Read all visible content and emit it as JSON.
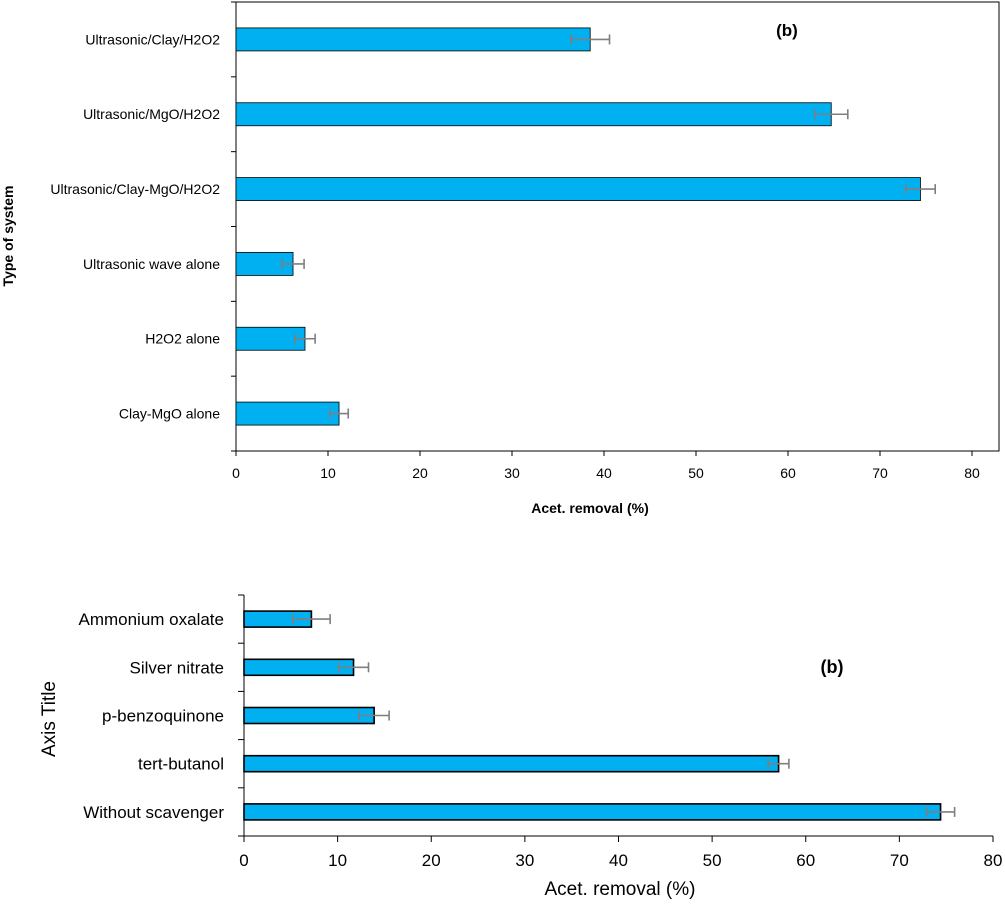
{
  "chart_data": [
    {
      "type": "bar",
      "orientation": "horizontal",
      "panel_label": "(b)",
      "xlabel": "Acet. removal (%)",
      "ylabel": "Type of system",
      "xlim": [
        0,
        80
      ],
      "xticks": [
        "0",
        "10",
        "20",
        "30",
        "40",
        "50",
        "60",
        "70",
        "80"
      ],
      "categories": [
        "Ultrasonic/Clay/H2O2",
        "Ultrasonic/MgO/H2O2",
        "Ultrasonic/Clay-MgO/H2O2",
        "Ultrasonic wave alone",
        "H2O2 alone",
        "Clay-MgO alone"
      ],
      "values": [
        38.5,
        64.7,
        74.4,
        6.2,
        7.5,
        11.2
      ],
      "errors": [
        2.1,
        1.8,
        1.6,
        1.2,
        1.1,
        1.0
      ],
      "grid": false,
      "colors": {
        "bar": "#00B0F0",
        "bar_edge": "#000000",
        "error": "#7F7F7F"
      }
    },
    {
      "type": "bar",
      "orientation": "horizontal",
      "panel_label": "(b)",
      "xlabel": "Acet. removal (%)",
      "ylabel": "Axis Title",
      "xlim": [
        0,
        80
      ],
      "xticks": [
        "0",
        "10",
        "20",
        "30",
        "40",
        "50",
        "60",
        "70",
        "80"
      ],
      "categories": [
        "Ammonium oxalate",
        "Silver nitrate",
        "p-benzoquinone",
        "tert-butanol",
        "Without scavenger"
      ],
      "values": [
        7.2,
        11.7,
        13.9,
        57.1,
        74.4
      ],
      "errors": [
        2.0,
        1.6,
        1.6,
        1.1,
        1.5
      ],
      "grid": false,
      "colors": {
        "bar": "#00B0F0",
        "bar_edge": "#000000",
        "error": "#7F7F7F"
      }
    }
  ]
}
